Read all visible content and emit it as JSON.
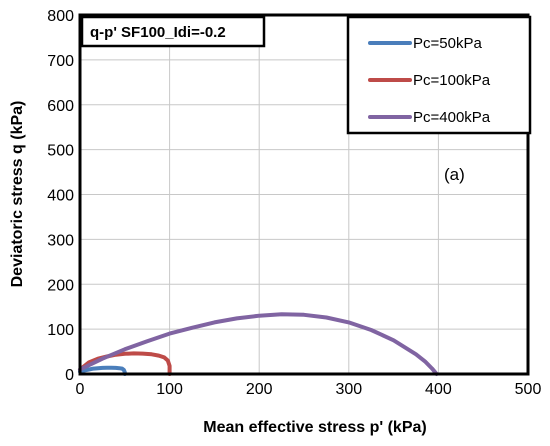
{
  "chart_data": {
    "type": "line",
    "title": "q-p' SF100_Idi=-0.2",
    "xlabel": "Mean effective stress p' (kPa)",
    "ylabel": "Deviatoric stress q (kPa)",
    "xlim": [
      0,
      500
    ],
    "ylim": [
      0,
      800
    ],
    "xticks": [
      "0",
      "100",
      "200",
      "300",
      "400",
      "500"
    ],
    "yticks": [
      "0",
      "100",
      "200",
      "300",
      "400",
      "500",
      "600",
      "700",
      "800"
    ],
    "grid": true,
    "legend_position": "top-right",
    "annotation": "(a)",
    "series": [
      {
        "name": "Pc=50kPa",
        "color": "#4a7ebb",
        "x": [
          0,
          5,
          10,
          15,
          20,
          25,
          30,
          35,
          40,
          44,
          47,
          49,
          50,
          50
        ],
        "y": [
          5,
          8,
          10,
          12,
          13,
          13.5,
          14,
          14,
          13.5,
          13,
          12,
          9,
          4,
          0
        ]
      },
      {
        "name": "Pc=100kPa",
        "color": "#be4b48",
        "x": [
          0,
          10,
          20,
          30,
          40,
          50,
          60,
          70,
          80,
          88,
          94,
          98,
          100,
          100
        ],
        "y": [
          10,
          26,
          34,
          39,
          43,
          45,
          46,
          45.5,
          44,
          41,
          37,
          30,
          18,
          0
        ]
      },
      {
        "name": "Pc=400kPa",
        "color": "#8064a2",
        "x": [
          0,
          25,
          50,
          75,
          100,
          125,
          150,
          175,
          200,
          225,
          250,
          275,
          300,
          325,
          350,
          375,
          385,
          393,
          396,
          398
        ],
        "y": [
          10,
          34,
          55,
          73,
          90,
          103,
          115,
          124,
          130,
          133,
          132,
          126,
          115,
          98,
          75,
          44,
          28,
          12,
          5,
          0
        ]
      }
    ]
  }
}
